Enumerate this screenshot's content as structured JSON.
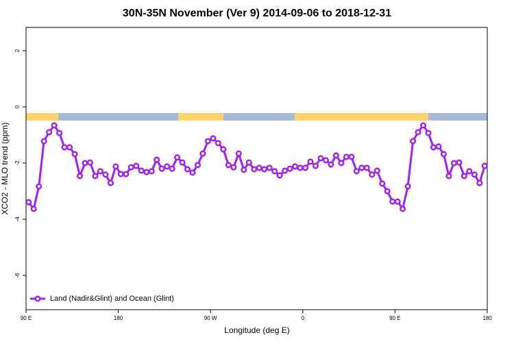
{
  "chart_data": {
    "type": "line",
    "title": "30N-35N November (Ver 9)   2014-09-06 to 2018-12-31",
    "x_label": "Longitude (deg E)",
    "y_label": "XCO2 - MLO trend (ppm)",
    "x": [
      92.5,
      97.5,
      102.5,
      107.5,
      112.5,
      117.5,
      122.5,
      127.5,
      132.5,
      137.5,
      142.5,
      147.5,
      152.5,
      157.5,
      162.5,
      167.5,
      172.5,
      177.5,
      182.5,
      187.5,
      192.5,
      197.5,
      202.5,
      207.5,
      212.5,
      217.5,
      222.5,
      227.5,
      232.5,
      237.5,
      242.5,
      247.5,
      252.5,
      257.5,
      262.5,
      267.5,
      272.5,
      277.5,
      282.5,
      287.5,
      292.5,
      297.5,
      302.5,
      307.5,
      312.5,
      317.5,
      322.5,
      327.5,
      332.5,
      337.5,
      342.5,
      347.5,
      352.5,
      357.5,
      362.5,
      367.5,
      372.5,
      377.5,
      382.5,
      387.5,
      392.5,
      397.5,
      402.5,
      407.5,
      412.5,
      417.5,
      422.5,
      427.5,
      432.5,
      437.5,
      442.5,
      447.5,
      452.5,
      457.5,
      462.5,
      467.5,
      472.5,
      477.5,
      482.5,
      487.5,
      492.5,
      497.5,
      502.5,
      507.5,
      512.5,
      517.5,
      522.5,
      527.5,
      532.5,
      537.5
    ],
    "series": [
      {
        "name": "Land (Nadir&Glint) and Ocean (Glint)",
        "color": "#a020f0",
        "values": [
          -3.39,
          -3.63,
          -2.83,
          -1.22,
          -0.9,
          -0.66,
          -0.93,
          -1.44,
          -1.44,
          -1.68,
          -2.46,
          -2.0,
          -1.98,
          -2.46,
          -2.29,
          -2.41,
          -2.71,
          -2.12,
          -2.39,
          -2.39,
          -2.15,
          -2.1,
          -2.27,
          -2.32,
          -2.29,
          -1.88,
          -2.2,
          -2.12,
          -2.2,
          -1.8,
          -1.98,
          -2.22,
          -2.34,
          -2.07,
          -1.66,
          -1.22,
          -1.12,
          -1.29,
          -1.51,
          -2.07,
          -2.15,
          -1.66,
          -2.24,
          -1.98,
          -2.22,
          -2.17,
          -2.22,
          -2.17,
          -2.29,
          -2.44,
          -2.27,
          -2.2,
          -2.12,
          -2.17,
          -2.17,
          -1.95,
          -2.1,
          -1.83,
          -1.9,
          -2.05,
          -1.73,
          -2.0,
          -1.78,
          -1.78,
          -2.29,
          -2.17,
          -2.17,
          -2.41,
          -2.27,
          -2.73,
          -3.0,
          -3.37,
          -3.37,
          -3.63,
          -2.83,
          -1.22,
          -0.9,
          -0.66,
          -0.93,
          -1.44,
          -1.41,
          -1.68,
          -2.46,
          -2.0,
          -1.98,
          -2.46,
          -2.29,
          -2.41,
          -2.71,
          -2.1
        ]
      }
    ],
    "xlim": [
      90,
      540
    ],
    "xticks": [
      {
        "value": 90,
        "label": "90 E"
      },
      180,
      {
        "value": 270,
        "label": "90 W"
      },
      {
        "value": 360,
        "label": "0"
      },
      {
        "value": 450,
        "label": "90 E"
      },
      {
        "value": 540,
        "label": "180"
      }
    ],
    "ylim": [
      -7.22,
      2.83
    ],
    "yticks": [
      -6,
      -4,
      -2,
      0,
      2
    ],
    "legend": "bottom-left"
  }
}
